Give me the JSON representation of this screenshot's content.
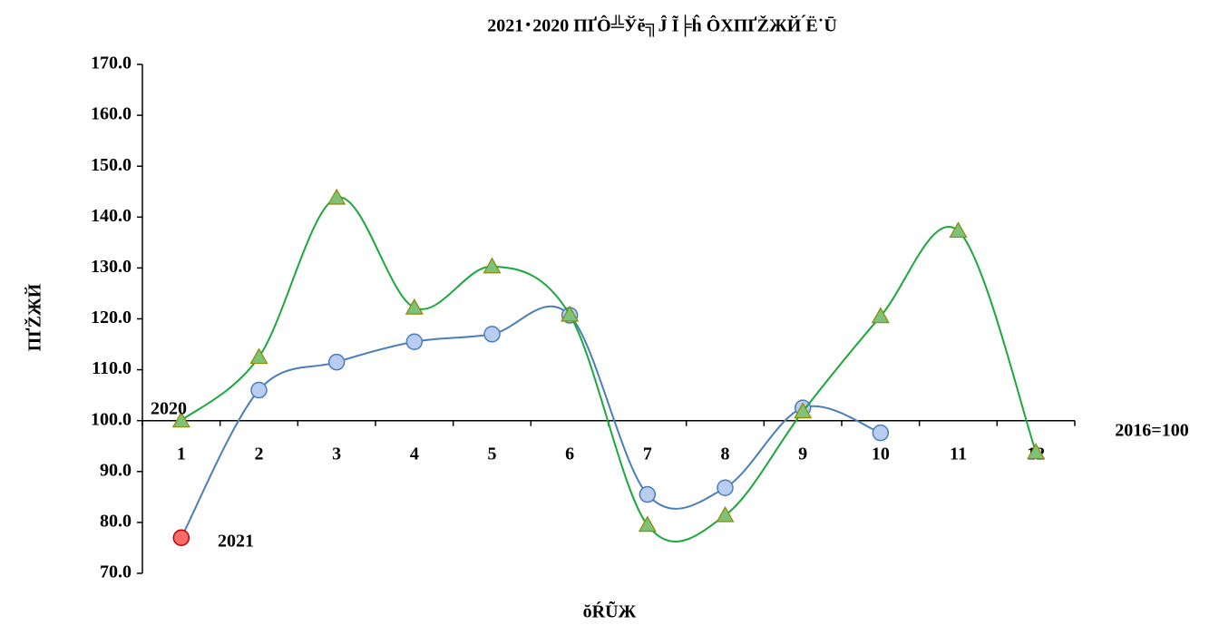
{
  "chart_data": {
    "type": "line",
    "title": "2021･2020 ПҐÔ╩Ўĕ╗Ĵ Ĩ╞ĥ ÔХПҐŽЖЙ ́Ё˙Ū",
    "x_label": "ŏŔŨЖ",
    "y_label": "ПҐŽЖЙ",
    "note": "2016=100",
    "categories": [
      "1",
      "2",
      "3",
      "4",
      "5",
      "6",
      "7",
      "8",
      "9",
      "10",
      "11",
      "12"
    ],
    "series": [
      {
        "name": "2021",
        "color": "#4a7ebb",
        "fill": "#b9cdf0",
        "marker": "circle",
        "highlight_first": "#ff6b6b",
        "values": [
          77.0,
          106.0,
          111.5,
          115.5,
          117.0,
          120.7,
          85.5,
          86.8,
          102.5,
          97.6,
          null,
          null
        ]
      },
      {
        "name": "2020",
        "color": "#1aa83c",
        "fill": "#7ec27a",
        "marker": "triangle",
        "values": [
          100.0,
          112.5,
          143.8,
          122.2,
          130.3,
          120.8,
          79.5,
          81.4,
          101.8,
          120.5,
          137.3,
          93.8
        ]
      }
    ],
    "ylim": [
      70,
      170
    ],
    "yticks": [
      {
        "value": 70,
        "label": "70.0"
      },
      {
        "value": 80,
        "label": "80.0"
      },
      {
        "value": 90,
        "label": "90.0"
      },
      {
        "value": 100,
        "label": "100.0"
      },
      {
        "value": 110,
        "label": "110.0"
      },
      {
        "value": 120,
        "label": "120.0"
      },
      {
        "value": 130,
        "label": "130.0"
      },
      {
        "value": 140,
        "label": "140.0"
      },
      {
        "value": 150,
        "label": "150.0"
      },
      {
        "value": 160,
        "label": "160.0"
      },
      {
        "value": 170,
        "label": "170.0"
      }
    ],
    "x_axis_at": 100,
    "smooth": true
  }
}
